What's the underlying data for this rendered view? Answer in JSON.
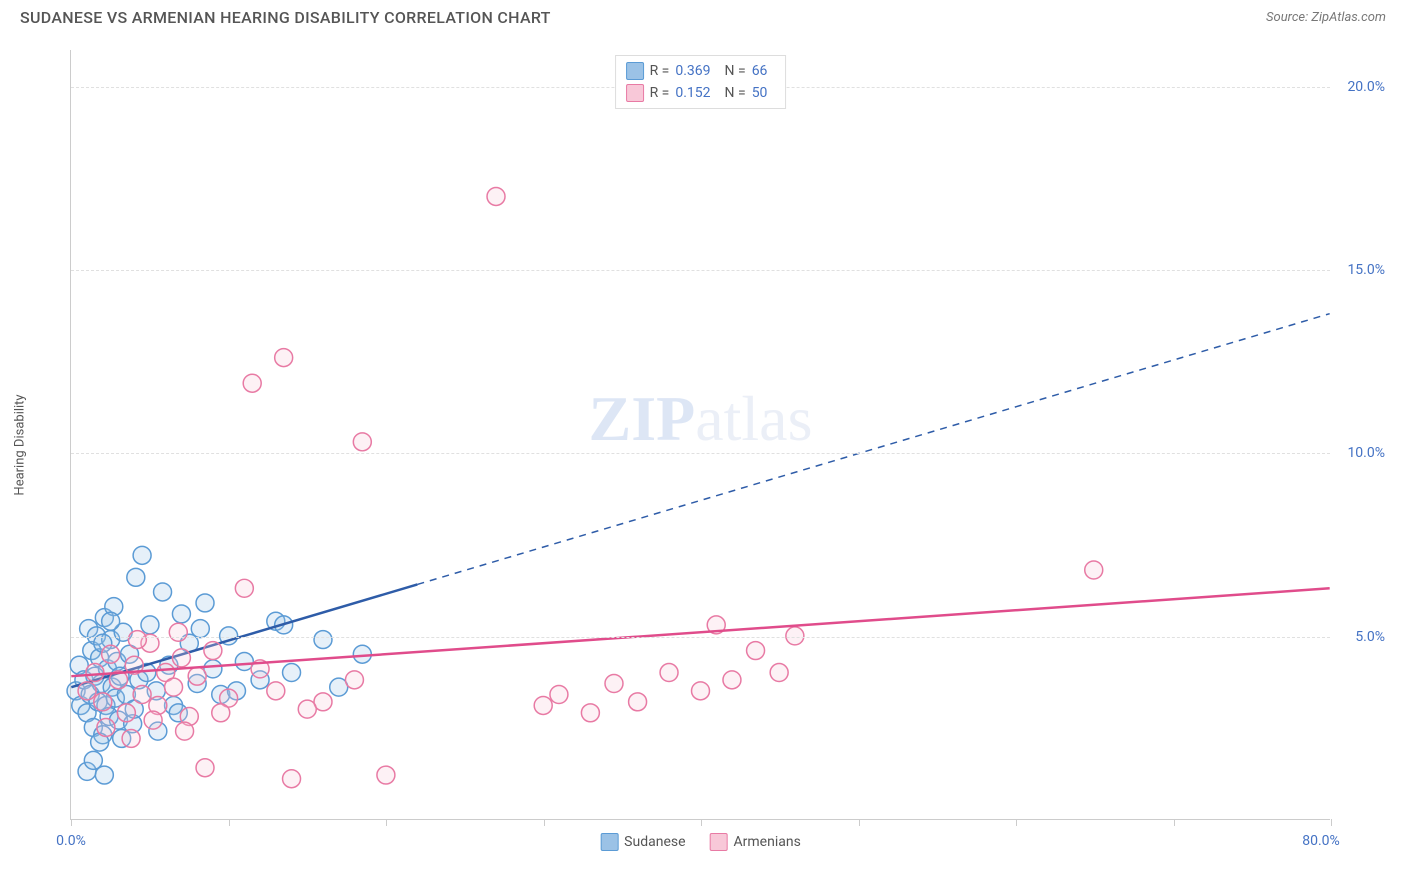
{
  "title": "SUDANESE VS ARMENIAN HEARING DISABILITY CORRELATION CHART",
  "source": "Source: ZipAtlas.com",
  "y_axis_label": "Hearing Disability",
  "watermark_bold": "ZIP",
  "watermark_light": "atlas",
  "chart": {
    "type": "scatter",
    "xlim": [
      0,
      80
    ],
    "ylim": [
      0,
      21
    ],
    "x_ticks": [
      0,
      10,
      20,
      30,
      40,
      50,
      60,
      70,
      80
    ],
    "x_tick_labels": {
      "0": "0.0%",
      "80": "80.0%"
    },
    "y_ticks": [
      5,
      10,
      15,
      20
    ],
    "y_tick_labels": {
      "5": "5.0%",
      "10": "10.0%",
      "15": "15.0%",
      "20": "20.0%"
    },
    "background_color": "#ffffff",
    "grid_color": "#e0e0e0",
    "axis_color": "#cccccc",
    "tick_label_color": "#4472c4",
    "tick_label_fontsize": 14,
    "marker_radius": 9,
    "marker_fill_opacity": 0.25,
    "marker_stroke_width": 1.5,
    "trend_line_width": 2.5,
    "series": [
      {
        "key": "sudanese",
        "label": "Sudanese",
        "color_fill": "#9bc2e6",
        "color_stroke": "#5b9bd5",
        "trend_color": "#2e5ca8",
        "r_value": "0.369",
        "n_value": "66",
        "trend_x_range": [
          0,
          80
        ],
        "trend_y_at_x0": 3.6,
        "trend_y_at_xmax": 13.8,
        "solid_until_x": 22,
        "points": [
          [
            0.3,
            3.5
          ],
          [
            0.5,
            4.2
          ],
          [
            0.6,
            3.1
          ],
          [
            0.8,
            3.8
          ],
          [
            1.0,
            2.9
          ],
          [
            1.1,
            5.2
          ],
          [
            1.2,
            3.4
          ],
          [
            1.3,
            4.6
          ],
          [
            1.4,
            2.5
          ],
          [
            1.5,
            3.9
          ],
          [
            1.6,
            5.0
          ],
          [
            1.7,
            3.2
          ],
          [
            1.8,
            4.4
          ],
          [
            1.9,
            3.7
          ],
          [
            2.0,
            2.3
          ],
          [
            2.1,
            5.5
          ],
          [
            2.2,
            3.1
          ],
          [
            2.3,
            4.1
          ],
          [
            2.4,
            2.8
          ],
          [
            2.5,
            4.9
          ],
          [
            2.6,
            3.6
          ],
          [
            2.7,
            5.8
          ],
          [
            2.8,
            3.3
          ],
          [
            2.9,
            4.3
          ],
          [
            3.0,
            2.7
          ],
          [
            3.1,
            3.9
          ],
          [
            3.3,
            5.1
          ],
          [
            3.5,
            3.4
          ],
          [
            3.7,
            4.5
          ],
          [
            3.9,
            2.6
          ],
          [
            4.1,
            6.6
          ],
          [
            4.3,
            3.8
          ],
          [
            1.0,
            1.3
          ],
          [
            1.4,
            1.6
          ],
          [
            2.1,
            1.2
          ],
          [
            3.2,
            2.2
          ],
          [
            4.5,
            7.2
          ],
          [
            4.8,
            4.0
          ],
          [
            5.0,
            5.3
          ],
          [
            5.4,
            3.5
          ],
          [
            5.8,
            6.2
          ],
          [
            6.2,
            4.2
          ],
          [
            6.5,
            3.1
          ],
          [
            7.0,
            5.6
          ],
          [
            7.5,
            4.8
          ],
          [
            8.0,
            3.7
          ],
          [
            8.5,
            5.9
          ],
          [
            9.0,
            4.1
          ],
          [
            9.5,
            3.4
          ],
          [
            10.0,
            5.0
          ],
          [
            11.0,
            4.3
          ],
          [
            12.0,
            3.8
          ],
          [
            13.0,
            5.4
          ],
          [
            14.0,
            4.0
          ],
          [
            16.0,
            4.9
          ],
          [
            18.5,
            4.5
          ],
          [
            17.0,
            3.6
          ],
          [
            2.0,
            4.8
          ],
          [
            5.5,
            2.4
          ],
          [
            6.8,
            2.9
          ],
          [
            8.2,
            5.2
          ],
          [
            10.5,
            3.5
          ],
          [
            13.5,
            5.3
          ],
          [
            4.0,
            3.0
          ],
          [
            2.5,
            5.4
          ],
          [
            1.8,
            2.1
          ]
        ]
      },
      {
        "key": "armenians",
        "label": "Armenians",
        "color_fill": "#f8c8d8",
        "color_stroke": "#e87aa4",
        "trend_color": "#e04c8b",
        "r_value": "0.152",
        "n_value": "50",
        "trend_x_range": [
          0,
          80
        ],
        "trend_y_at_x0": 3.9,
        "trend_y_at_xmax": 6.3,
        "solid_until_x": 80,
        "points": [
          [
            1.0,
            3.5
          ],
          [
            1.5,
            4.0
          ],
          [
            2.0,
            3.2
          ],
          [
            2.5,
            4.5
          ],
          [
            3.0,
            3.8
          ],
          [
            3.5,
            2.9
          ],
          [
            4.0,
            4.2
          ],
          [
            4.5,
            3.4
          ],
          [
            5.0,
            4.8
          ],
          [
            5.5,
            3.1
          ],
          [
            6.0,
            4.0
          ],
          [
            6.5,
            3.6
          ],
          [
            7.0,
            4.4
          ],
          [
            7.5,
            2.8
          ],
          [
            8.0,
            3.9
          ],
          [
            9.0,
            4.6
          ],
          [
            10.0,
            3.3
          ],
          [
            11.0,
            6.3
          ],
          [
            12.0,
            4.1
          ],
          [
            13.0,
            3.5
          ],
          [
            14.0,
            1.1
          ],
          [
            16.0,
            3.2
          ],
          [
            18.0,
            3.8
          ],
          [
            20.0,
            1.2
          ],
          [
            11.5,
            11.9
          ],
          [
            13.5,
            12.6
          ],
          [
            15.0,
            3.0
          ],
          [
            18.5,
            10.3
          ],
          [
            27.0,
            17.0
          ],
          [
            30.0,
            3.1
          ],
          [
            31.0,
            3.4
          ],
          [
            33.0,
            2.9
          ],
          [
            34.5,
            3.7
          ],
          [
            36.0,
            3.2
          ],
          [
            38.0,
            4.0
          ],
          [
            40.0,
            3.5
          ],
          [
            41.0,
            5.3
          ],
          [
            42.0,
            3.8
          ],
          [
            43.5,
            4.6
          ],
          [
            45.0,
            4.0
          ],
          [
            46.0,
            5.0
          ],
          [
            65.0,
            6.8
          ],
          [
            2.2,
            2.5
          ],
          [
            3.8,
            2.2
          ],
          [
            5.2,
            2.7
          ],
          [
            7.2,
            2.4
          ],
          [
            9.5,
            2.9
          ],
          [
            4.2,
            4.9
          ],
          [
            6.8,
            5.1
          ],
          [
            8.5,
            1.4
          ]
        ]
      }
    ]
  },
  "legend_top": {
    "r_label": "R =",
    "n_label": "N ="
  },
  "legend_bottom_labels": [
    "Sudanese",
    "Armenians"
  ]
}
